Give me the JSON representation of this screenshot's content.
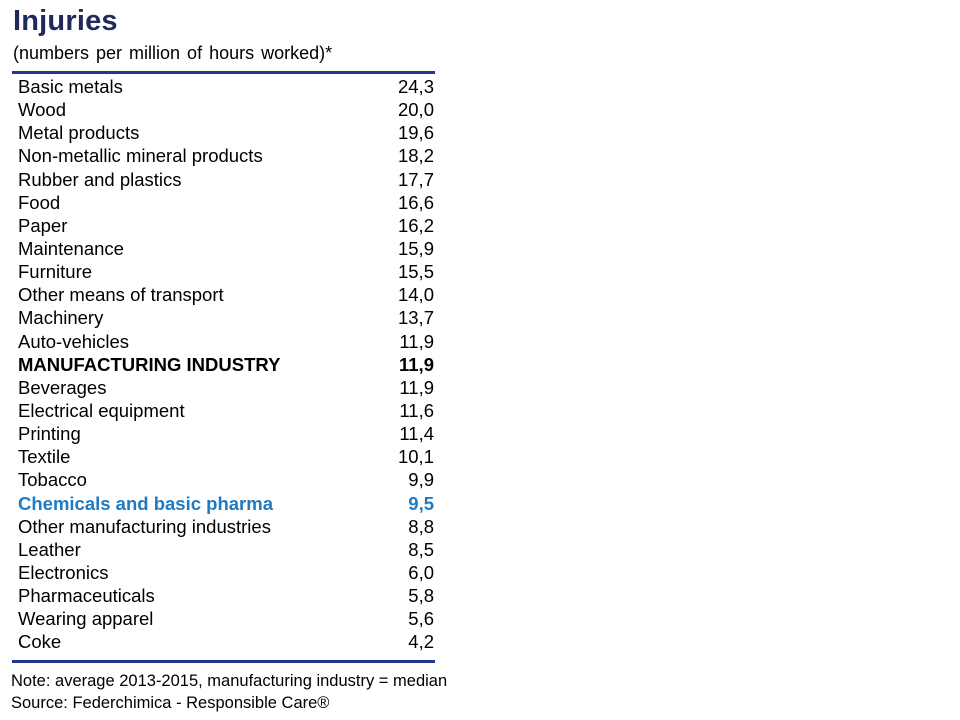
{
  "title": "Injuries",
  "subtitle": "(numbers per million of hours worked)*",
  "rows": [
    {
      "label": "Basic metals",
      "value": "24,3",
      "style": "normal"
    },
    {
      "label": "Wood",
      "value": "20,0",
      "style": "normal"
    },
    {
      "label": "Metal products",
      "value": "19,6",
      "style": "normal"
    },
    {
      "label": "Non-metallic mineral products",
      "value": "18,2",
      "style": "normal"
    },
    {
      "label": "Rubber and plastics",
      "value": "17,7",
      "style": "normal"
    },
    {
      "label": "Food",
      "value": "16,6",
      "style": "normal"
    },
    {
      "label": "Paper",
      "value": "16,2",
      "style": "normal"
    },
    {
      "label": "Maintenance",
      "value": "15,9",
      "style": "normal"
    },
    {
      "label": "Furniture",
      "value": "15,5",
      "style": "normal"
    },
    {
      "label": "Other means of transport",
      "value": "14,0",
      "style": "normal"
    },
    {
      "label": "Machinery",
      "value": "13,7",
      "style": "normal"
    },
    {
      "label": "Auto-vehicles",
      "value": "11,9",
      "style": "normal"
    },
    {
      "label": "MANUFACTURING INDUSTRY",
      "value": "11,9",
      "style": "bold"
    },
    {
      "label": "Beverages",
      "value": "11,9",
      "style": "normal"
    },
    {
      "label": "Electrical equipment",
      "value": "11,6",
      "style": "normal"
    },
    {
      "label": "Printing",
      "value": "11,4",
      "style": "normal"
    },
    {
      "label": "Textile",
      "value": "10,1",
      "style": "normal"
    },
    {
      "label": "Tobacco",
      "value": "9,9",
      "style": "normal"
    },
    {
      "label": "Chemicals and basic pharma",
      "value": "9,5",
      "style": "highlight"
    },
    {
      "label": "Other manufacturing industries",
      "value": "8,8",
      "style": "normal"
    },
    {
      "label": "Leather",
      "value": "8,5",
      "style": "normal"
    },
    {
      "label": "Electronics",
      "value": "6,0",
      "style": "normal"
    },
    {
      "label": "Pharmaceuticals",
      "value": "5,8",
      "style": "normal"
    },
    {
      "label": "Wearing apparel",
      "value": "5,6",
      "style": "normal"
    },
    {
      "label": "Coke",
      "value": "4,2",
      "style": "normal"
    }
  ],
  "note": "Note: average 2013-2015, manufacturing industry = median",
  "source": "Source: Federchimica - Responsible Care®",
  "colors": {
    "title": "#1f2a5c",
    "rule": "#1f3a8c",
    "highlight": "#1e7bc3"
  }
}
